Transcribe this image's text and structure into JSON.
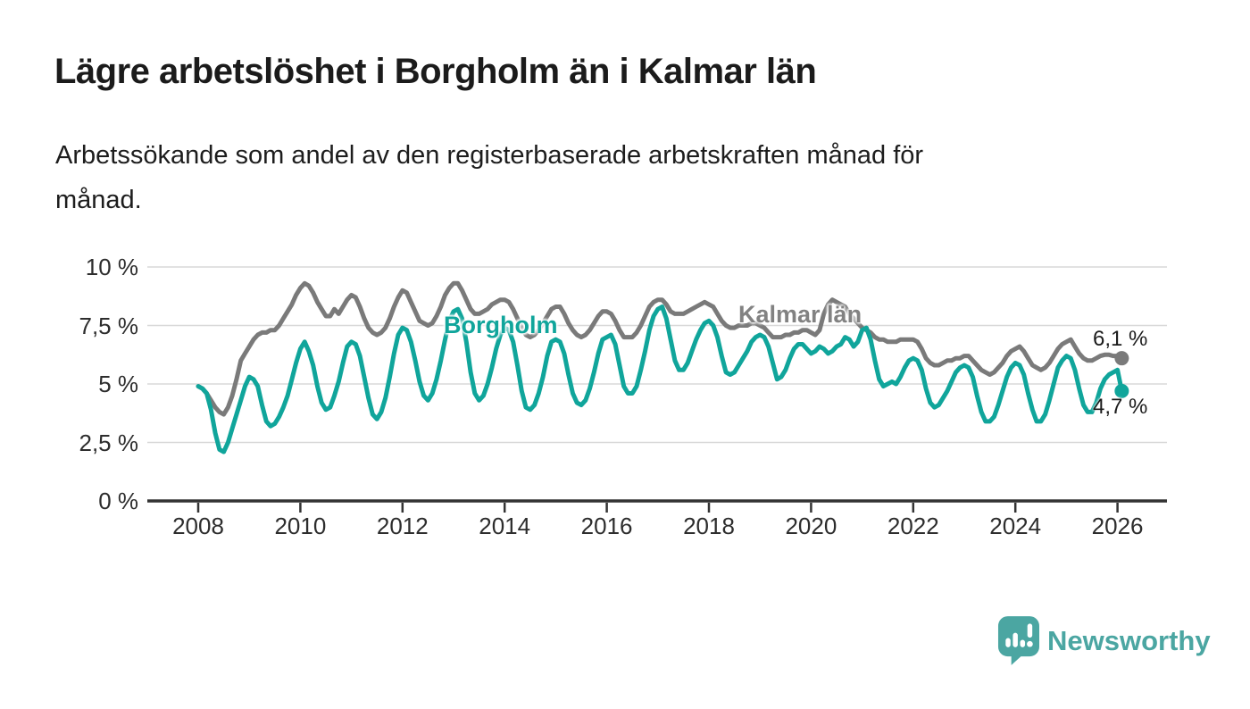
{
  "header": {
    "title": "Lägre arbetslöshet i Borgholm än i Kalmar län",
    "subtitle_line1": "Arbetssökande som andel av den registerbaserade arbetskraften månad för",
    "subtitle_line2": "månad."
  },
  "chart_data": {
    "type": "line",
    "title": "Lägre arbetslöshet i Borgholm än i Kalmar län",
    "subtitle": "Arbetssökande som andel av den registerbaserade arbetskraften månad för månad.",
    "x_unit": "month",
    "x_start": "2008-01",
    "x_end": "2026-02",
    "x_tick_years": [
      2008,
      2010,
      2012,
      2014,
      2016,
      2018,
      2020,
      2022,
      2024,
      2026
    ],
    "x_tick_labels": [
      "2008",
      "2010",
      "2012",
      "2014",
      "2016",
      "2018",
      "2020",
      "2022",
      "2024",
      "2026"
    ],
    "y_axis_values": [
      10,
      7.5,
      5,
      2.5,
      0
    ],
    "y_tick_labels": [
      "10 %",
      "7,5 %",
      "5 %",
      "2,5 %",
      "0 %"
    ],
    "ylim": [
      0,
      10.4
    ],
    "grid": "horizontal",
    "legend_position": "inline-labels",
    "colors": {
      "borgholm": "#10a59b",
      "kalmar": "#7a7a7a",
      "kalmar_label": "#828282",
      "gridline": "#d8d8d8",
      "axis": "#333333"
    },
    "series": [
      {
        "name": "Kalmar län",
        "end_label": "6,1 %",
        "end_value": 6.1,
        "values": [
          4.9,
          4.8,
          4.6,
          4.3,
          4.0,
          3.8,
          3.7,
          4.0,
          4.5,
          5.2,
          6.0,
          6.3,
          6.6,
          6.9,
          7.1,
          7.2,
          7.2,
          7.3,
          7.3,
          7.5,
          7.8,
          8.1,
          8.4,
          8.8,
          9.1,
          9.3,
          9.2,
          8.9,
          8.5,
          8.2,
          7.9,
          7.9,
          8.2,
          8.0,
          8.3,
          8.6,
          8.8,
          8.7,
          8.3,
          7.8,
          7.4,
          7.2,
          7.1,
          7.2,
          7.4,
          7.8,
          8.3,
          8.7,
          9.0,
          8.9,
          8.5,
          8.1,
          7.7,
          7.6,
          7.5,
          7.6,
          7.9,
          8.3,
          8.8,
          9.1,
          9.3,
          9.3,
          9.0,
          8.6,
          8.2,
          8.0,
          8.0,
          8.1,
          8.2,
          8.4,
          8.5,
          8.6,
          8.6,
          8.5,
          8.2,
          7.8,
          7.4,
          7.1,
          7.0,
          7.1,
          7.3,
          7.6,
          7.9,
          8.2,
          8.3,
          8.3,
          8.0,
          7.6,
          7.3,
          7.1,
          7.0,
          7.1,
          7.3,
          7.6,
          7.9,
          8.1,
          8.1,
          8.0,
          7.7,
          7.3,
          7.0,
          7.0,
          7.0,
          7.2,
          7.5,
          7.9,
          8.3,
          8.5,
          8.6,
          8.6,
          8.4,
          8.1,
          8.0,
          8.0,
          8.0,
          8.1,
          8.2,
          8.3,
          8.4,
          8.5,
          8.4,
          8.3,
          8.0,
          7.7,
          7.5,
          7.4,
          7.4,
          7.5,
          7.5,
          7.5,
          7.6,
          7.6,
          7.5,
          7.4,
          7.2,
          7.0,
          7.0,
          7.0,
          7.1,
          7.1,
          7.2,
          7.2,
          7.3,
          7.3,
          7.2,
          7.1,
          7.3,
          8.0,
          8.4,
          8.6,
          8.5,
          8.4,
          8.3,
          8.0,
          7.8,
          7.6,
          7.4,
          7.3,
          7.2,
          7.0,
          6.9,
          6.9,
          6.8,
          6.8,
          6.8,
          6.9,
          6.9,
          6.9,
          6.9,
          6.8,
          6.5,
          6.1,
          5.9,
          5.8,
          5.8,
          5.9,
          6.0,
          6.0,
          6.1,
          6.1,
          6.2,
          6.2,
          6.0,
          5.8,
          5.6,
          5.5,
          5.4,
          5.5,
          5.7,
          5.9,
          6.2,
          6.4,
          6.5,
          6.6,
          6.4,
          6.1,
          5.8,
          5.7,
          5.6,
          5.7,
          5.9,
          6.2,
          6.5,
          6.7,
          6.8,
          6.9,
          6.6,
          6.3,
          6.1,
          6.0,
          6.0,
          6.1,
          6.2,
          6.25,
          6.25,
          6.2,
          6.2,
          6.1
        ]
      },
      {
        "name": "Borgholm",
        "end_label": "4,7 %",
        "end_value": 4.7,
        "values": [
          4.9,
          4.8,
          4.6,
          3.9,
          2.9,
          2.2,
          2.1,
          2.5,
          3.1,
          3.7,
          4.3,
          4.9,
          5.3,
          5.2,
          4.9,
          4.1,
          3.4,
          3.2,
          3.3,
          3.6,
          4.0,
          4.5,
          5.2,
          5.9,
          6.5,
          6.8,
          6.4,
          5.8,
          4.9,
          4.2,
          3.9,
          4.0,
          4.5,
          5.1,
          5.9,
          6.6,
          6.8,
          6.7,
          6.2,
          5.3,
          4.4,
          3.7,
          3.5,
          3.8,
          4.4,
          5.3,
          6.3,
          7.1,
          7.4,
          7.3,
          6.8,
          6.0,
          5.1,
          4.5,
          4.3,
          4.6,
          5.2,
          6.0,
          6.9,
          7.7,
          8.1,
          8.2,
          7.8,
          6.8,
          5.5,
          4.6,
          4.3,
          4.5,
          5.0,
          5.7,
          6.5,
          7.1,
          7.4,
          7.3,
          6.8,
          5.8,
          4.7,
          4.0,
          3.9,
          4.1,
          4.6,
          5.3,
          6.2,
          6.8,
          6.9,
          6.8,
          6.3,
          5.4,
          4.6,
          4.2,
          4.1,
          4.3,
          4.8,
          5.5,
          6.3,
          6.9,
          7.0,
          7.1,
          6.7,
          5.8,
          4.9,
          4.6,
          4.6,
          4.9,
          5.6,
          6.4,
          7.3,
          7.9,
          8.2,
          8.3,
          7.8,
          6.9,
          6.0,
          5.6,
          5.6,
          5.9,
          6.4,
          6.9,
          7.3,
          7.6,
          7.7,
          7.5,
          7.0,
          6.2,
          5.5,
          5.4,
          5.5,
          5.8,
          6.1,
          6.4,
          6.8,
          7.0,
          7.1,
          7.0,
          6.6,
          5.9,
          5.2,
          5.3,
          5.6,
          6.1,
          6.5,
          6.7,
          6.7,
          6.5,
          6.3,
          6.4,
          6.6,
          6.5,
          6.3,
          6.4,
          6.6,
          6.7,
          7.0,
          6.9,
          6.6,
          6.8,
          7.3,
          7.4,
          6.9,
          6.0,
          5.2,
          4.9,
          5.0,
          5.1,
          5.0,
          5.3,
          5.7,
          6.0,
          6.1,
          6.0,
          5.6,
          4.8,
          4.2,
          4.0,
          4.1,
          4.4,
          4.7,
          5.1,
          5.5,
          5.7,
          5.8,
          5.7,
          5.3,
          4.5,
          3.8,
          3.4,
          3.4,
          3.6,
          4.1,
          4.7,
          5.3,
          5.7,
          5.9,
          5.8,
          5.4,
          4.6,
          3.9,
          3.4,
          3.4,
          3.7,
          4.3,
          5.0,
          5.7,
          6.0,
          6.2,
          6.1,
          5.6,
          4.8,
          4.1,
          3.8,
          3.8,
          4.2,
          4.8,
          5.2,
          5.4,
          5.5,
          5.6,
          4.7
        ]
      }
    ]
  },
  "footer": {
    "brand": "Newsworthy",
    "brand_color": "#4ba6a2",
    "logo_icon": "newsworthy-speech-bubble-chart-icon"
  }
}
